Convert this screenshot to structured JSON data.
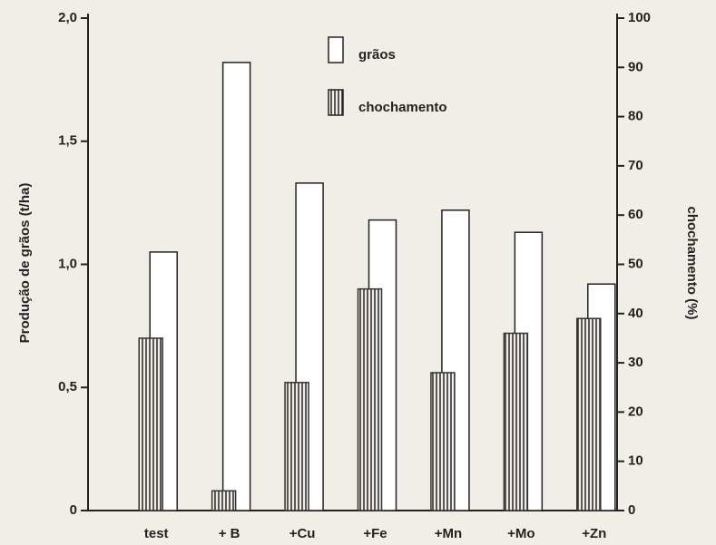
{
  "chart_data": {
    "type": "bar",
    "categories": [
      "test",
      "+ B",
      "+Cu",
      "+Fe",
      "+Mn",
      "+Mo",
      "+Zn"
    ],
    "series": [
      {
        "name": "grãos",
        "color": "#ffffff",
        "axis": "y",
        "values": [
          1.05,
          1.82,
          1.33,
          1.18,
          1.22,
          1.13,
          0.92
        ]
      },
      {
        "name": "chochamento",
        "color": "#333333",
        "axis": "y2",
        "values": [
          35,
          4,
          26,
          45,
          28,
          36,
          39
        ]
      }
    ],
    "ylabel": "Produção de grãos (t/ha)",
    "y2label": "chochamento (%)",
    "ylim": [
      0,
      2
    ],
    "yticks": [
      0,
      {
        "value": 0.5,
        "label": "0,5"
      },
      {
        "value": 1,
        "label": "1,0"
      },
      {
        "value": 1.5,
        "label": "1,5"
      },
      {
        "value": 2,
        "label": "2,0"
      }
    ],
    "y2lim": [
      0,
      100
    ],
    "y2ticks": [
      0,
      10,
      20,
      30,
      40,
      50,
      60,
      70,
      80,
      90,
      100
    ],
    "legend": "top"
  }
}
